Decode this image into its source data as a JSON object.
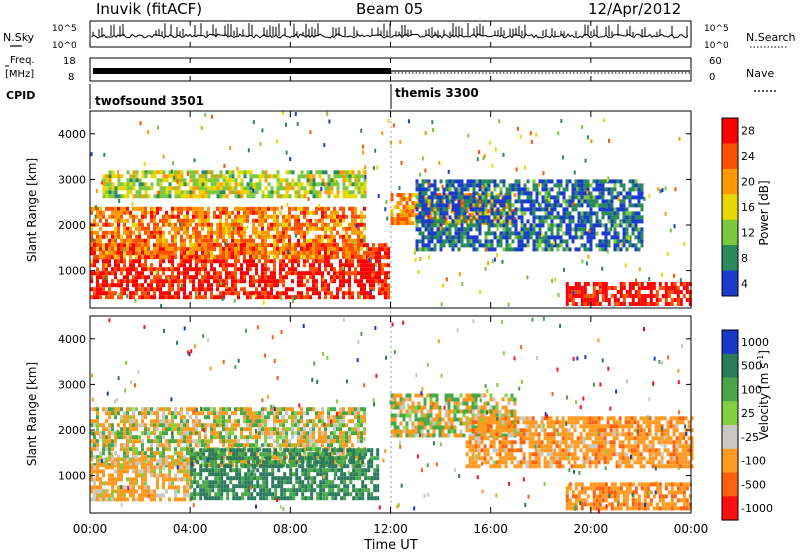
{
  "header": {
    "station": "Inuvik (fitACF)",
    "beam": "Beam 05",
    "date": "12/Apr/2012"
  },
  "strips": {
    "nsky_label": "N.Sky",
    "nsky_ticks": [
      "10^5",
      "10^0"
    ],
    "nsearch_label": "N.Search",
    "nsearch_ticks": [
      "10^5",
      "10^0"
    ],
    "freq_label_1": "Freq.",
    "freq_label_2": "[MHz]",
    "freq_ticks": [
      "18",
      "8"
    ],
    "nave_label": "Nave",
    "nave_ticks": [
      "60",
      "0"
    ],
    "cpid_label": "CPID",
    "cpid_segments": [
      {
        "name": "twofsound 3501",
        "start_hour": 0,
        "end_hour": 12
      },
      {
        "name": "themis 3300",
        "start_hour": 12,
        "end_hour": 24
      }
    ]
  },
  "chart_data": [
    {
      "type": "heatmap",
      "title": "Power",
      "ylabel": "Slant Range [km]",
      "ylim": [
        180,
        4500
      ],
      "y_ticks": [
        "1000",
        "2000",
        "3000",
        "4000"
      ],
      "y_tick_values": [
        1000,
        2000,
        3000,
        4000
      ],
      "xlim_hours": [
        0,
        24
      ],
      "colorbar_label": "Power [dB]",
      "colorbar_ticks": [
        "28",
        "24",
        "20",
        "16",
        "12",
        "8",
        "4"
      ],
      "colorbar_colors": [
        "#ff0000",
        "#ff5000",
        "#ff9a00",
        "#e8d800",
        "#78c840",
        "#2a8a5c",
        "#1a3ccc"
      ],
      "bands": [
        {
          "start_hour": 0.0,
          "end_hour": 11.9,
          "range_low": 400,
          "range_high": 1600,
          "value_db": 27
        },
        {
          "start_hour": 0.0,
          "end_hour": 11.0,
          "range_low": 1300,
          "range_high": 2400,
          "value_db": 22
        },
        {
          "start_hour": 0.5,
          "end_hour": 11.0,
          "range_low": 2600,
          "range_high": 3200,
          "value_db": 14
        },
        {
          "start_hour": 12.0,
          "end_hour": 17.0,
          "range_low": 2000,
          "range_high": 2700,
          "value_db": 20
        },
        {
          "start_hour": 13.0,
          "end_hour": 22.0,
          "range_low": 1500,
          "range_high": 3000,
          "value_db": 6
        },
        {
          "start_hour": 19.0,
          "end_hour": 24.0,
          "range_low": 250,
          "range_high": 750,
          "value_db": 28
        }
      ]
    },
    {
      "type": "heatmap",
      "title": "Velocity",
      "ylabel": "Slant Range [km]",
      "ylim": [
        180,
        4500
      ],
      "y_ticks": [
        "1000",
        "2000",
        "3000",
        "4000"
      ],
      "y_tick_values": [
        1000,
        2000,
        3000,
        4000
      ],
      "xlim_hours": [
        0,
        24
      ],
      "colorbar_label": "Velocity [m s",
      "colorbar_label_exp": "-1",
      "colorbar_label_end": "]",
      "colorbar_ticks": [
        "1000",
        "500",
        "100",
        "25",
        "-25",
        "-100",
        "-500",
        "-1000"
      ],
      "colorbar_colors": [
        "#1838c8",
        "#2a7a5c",
        "#48a848",
        "#80d040",
        "#c8c8c0",
        "#ff9a20",
        "#ff6010",
        "#ff1010"
      ],
      "bands": [
        {
          "start_hour": 0.0,
          "end_hour": 11.0,
          "range_low": 1200,
          "range_high": 2500,
          "value_ms": 0
        },
        {
          "start_hour": 12.0,
          "end_hour": 17.0,
          "range_low": 1900,
          "range_high": 2800,
          "value_ms": 0
        },
        {
          "start_hour": 0.0,
          "end_hour": 4.0,
          "range_low": 500,
          "range_high": 1400,
          "value_ms": -100
        },
        {
          "start_hour": 4.0,
          "end_hour": 11.5,
          "range_low": 500,
          "range_high": 1600,
          "value_ms": 300
        },
        {
          "start_hour": 19.0,
          "end_hour": 24.0,
          "range_low": 250,
          "range_high": 850,
          "value_ms": -200
        },
        {
          "start_hour": 15.0,
          "end_hour": 24.0,
          "range_low": 1200,
          "range_high": 2300,
          "value_ms": -150
        }
      ]
    }
  ],
  "xaxis": {
    "ticks": [
      "00:00",
      "04:00",
      "08:00",
      "12:00",
      "16:00",
      "20:00",
      "00:00"
    ],
    "tick_hours": [
      0,
      4,
      8,
      12,
      16,
      20,
      24
    ],
    "label": "Time UT"
  }
}
